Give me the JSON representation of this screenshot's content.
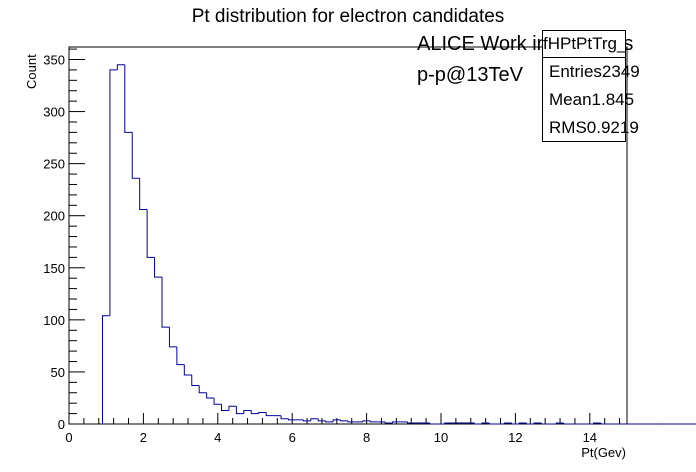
{
  "chart_data": {
    "type": "histogram",
    "title": "Pt distribution for electron candidates",
    "xlabel": "Pt(Gev)",
    "ylabel": "Count",
    "xlim": [
      0,
      15
    ],
    "ylim": [
      0,
      362
    ],
    "bin_width": 0.2,
    "bin_edges_start": 0.9,
    "x_ticks": [
      0,
      2,
      4,
      6,
      8,
      10,
      12,
      14
    ],
    "y_ticks": [
      0,
      50,
      100,
      150,
      200,
      250,
      300,
      350
    ],
    "values": [
      104,
      340,
      345,
      280,
      236,
      206,
      160,
      141,
      93,
      74,
      57,
      47,
      37,
      30,
      25,
      19,
      13,
      17,
      10,
      13,
      10,
      11,
      8,
      8,
      5,
      4,
      4,
      3,
      5,
      3,
      2,
      4,
      3,
      2,
      2,
      3,
      2,
      2,
      1,
      2,
      2,
      1,
      1,
      1,
      0,
      0,
      1,
      1,
      1,
      1,
      0,
      1,
      0,
      0,
      1,
      0,
      1,
      0,
      1,
      0,
      0,
      1,
      0,
      0,
      0,
      0,
      1,
      0,
      0,
      0,
      0,
      0,
      0,
      0,
      0,
      0,
      0,
      0,
      0,
      0,
      0,
      0,
      0,
      0,
      0,
      0,
      0,
      0,
      0,
      0,
      0,
      0,
      0,
      0,
      1,
      0
    ],
    "series_color": "#000099"
  },
  "annotations": {
    "experiment": "ALICE Work in Progress",
    "beam": "p-p@13TeV"
  },
  "stats": {
    "name": "fHPtPtTrg_MB",
    "entries_label": "Entries",
    "entries_value": "2349",
    "mean_label": "Mean",
    "mean_value": "1.845",
    "rms_label": "RMS",
    "rms_value": "0.9219"
  }
}
